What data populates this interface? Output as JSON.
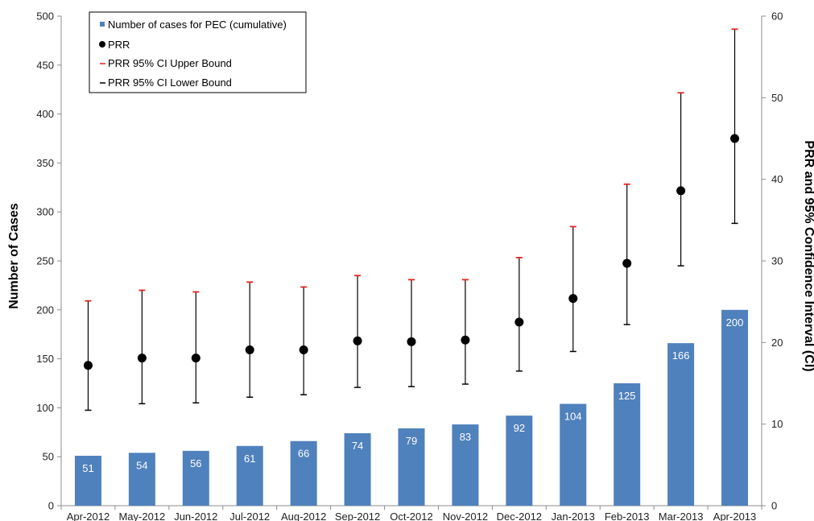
{
  "chart_data": {
    "type": "bar",
    "categories": [
      "Apr-2012",
      "May-2012",
      "Jun-2012",
      "Jul-2012",
      "Aug-2012",
      "Sep-2012",
      "Oct-2012",
      "Nov-2012",
      "Dec-2012",
      "Jan-2013",
      "Feb-2013",
      "Mar-2013",
      "Apr-2013"
    ],
    "ylabel": "Number of Cases",
    "y2label": "PRR and 95% Confidence Interval (CI)",
    "ylim": [
      0,
      500
    ],
    "y2lim": [
      0,
      60
    ],
    "y_ticks": [
      0,
      50,
      100,
      150,
      200,
      250,
      300,
      350,
      400,
      450,
      500
    ],
    "y2_ticks": [
      0,
      10,
      20,
      30,
      40,
      50,
      60
    ],
    "grid": false,
    "legend_position": "top-left",
    "series": [
      {
        "name": "Number of cases for PEC (cumulative)",
        "type": "bar",
        "axis": "left",
        "color": "#4f81bd",
        "values": [
          51,
          54,
          56,
          61,
          66,
          74,
          79,
          83,
          92,
          104,
          125,
          166,
          200
        ],
        "labels": [
          "51",
          "54",
          "56",
          "61",
          "66",
          "74",
          "79",
          "83",
          "92",
          "104",
          "125",
          "166",
          "200"
        ]
      },
      {
        "name": "PRR",
        "type": "scatter",
        "axis": "right",
        "color": "#000000",
        "values": [
          17.2,
          18.1,
          18.1,
          19.1,
          19.1,
          20.2,
          20.1,
          20.3,
          22.5,
          25.4,
          29.7,
          38.6,
          45.0
        ]
      },
      {
        "name": "PRR 95% CI Upper Bound",
        "type": "errorbar-upper",
        "axis": "right",
        "color": "#e8231f",
        "values": [
          25.1,
          26.4,
          26.2,
          27.4,
          26.8,
          28.2,
          27.7,
          27.7,
          30.4,
          34.2,
          39.4,
          50.6,
          58.4
        ]
      },
      {
        "name": "PRR 95% CI Lower Bound",
        "type": "errorbar-lower",
        "axis": "right",
        "color": "#000000",
        "values": [
          11.7,
          12.5,
          12.6,
          13.3,
          13.6,
          14.5,
          14.6,
          14.9,
          16.5,
          18.9,
          22.2,
          29.4,
          34.6
        ]
      }
    ]
  }
}
